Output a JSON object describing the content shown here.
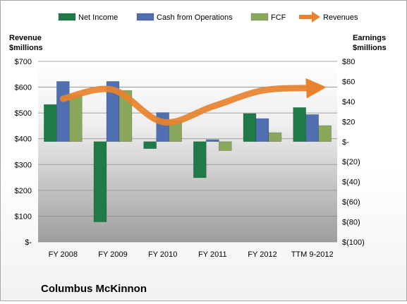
{
  "chart_data": {
    "type": "bar",
    "categories": [
      "FY 2008",
      "FY 2009",
      "FY 2010",
      "FY 2011",
      "FY 2012",
      "TTM 9-2012"
    ],
    "series": [
      {
        "name": "Net Income",
        "axis": "earnings",
        "color": "#1e7a46",
        "values": [
          37,
          -80,
          -7,
          -36,
          28,
          34
        ]
      },
      {
        "name": "Cash from Operations",
        "axis": "earnings",
        "color": "#4f6fb0",
        "values": [
          60,
          60,
          29,
          2,
          23,
          27
        ]
      },
      {
        "name": "FCF",
        "axis": "earnings",
        "color": "#8aa85c",
        "values": [
          47,
          51,
          21,
          -9,
          9,
          16
        ]
      },
      {
        "name": "Revenues",
        "axis": "revenue",
        "type": "line",
        "color": "#e8822e",
        "values": [
          555,
          590,
          465,
          525,
          587,
          597
        ]
      }
    ],
    "left_axis": {
      "label_line1": "Revenue",
      "label_line2": "$millions",
      "ylim": [
        0,
        700
      ],
      "ticks": [
        "$-",
        "$100",
        "$200",
        "$300",
        "$400",
        "$500",
        "$600",
        "$700"
      ]
    },
    "right_axis": {
      "label_line1": "Earnings",
      "label_line2": "$millions",
      "ylim": [
        -100,
        80
      ],
      "ticks": [
        "$(100)",
        "$(80)",
        "$(60)",
        "$(40)",
        "$(20)",
        "$-",
        "$20",
        "$40",
        "$60",
        "$80"
      ]
    },
    "grid": true,
    "legend_position": "top"
  },
  "company": "Columbus McKinnon"
}
